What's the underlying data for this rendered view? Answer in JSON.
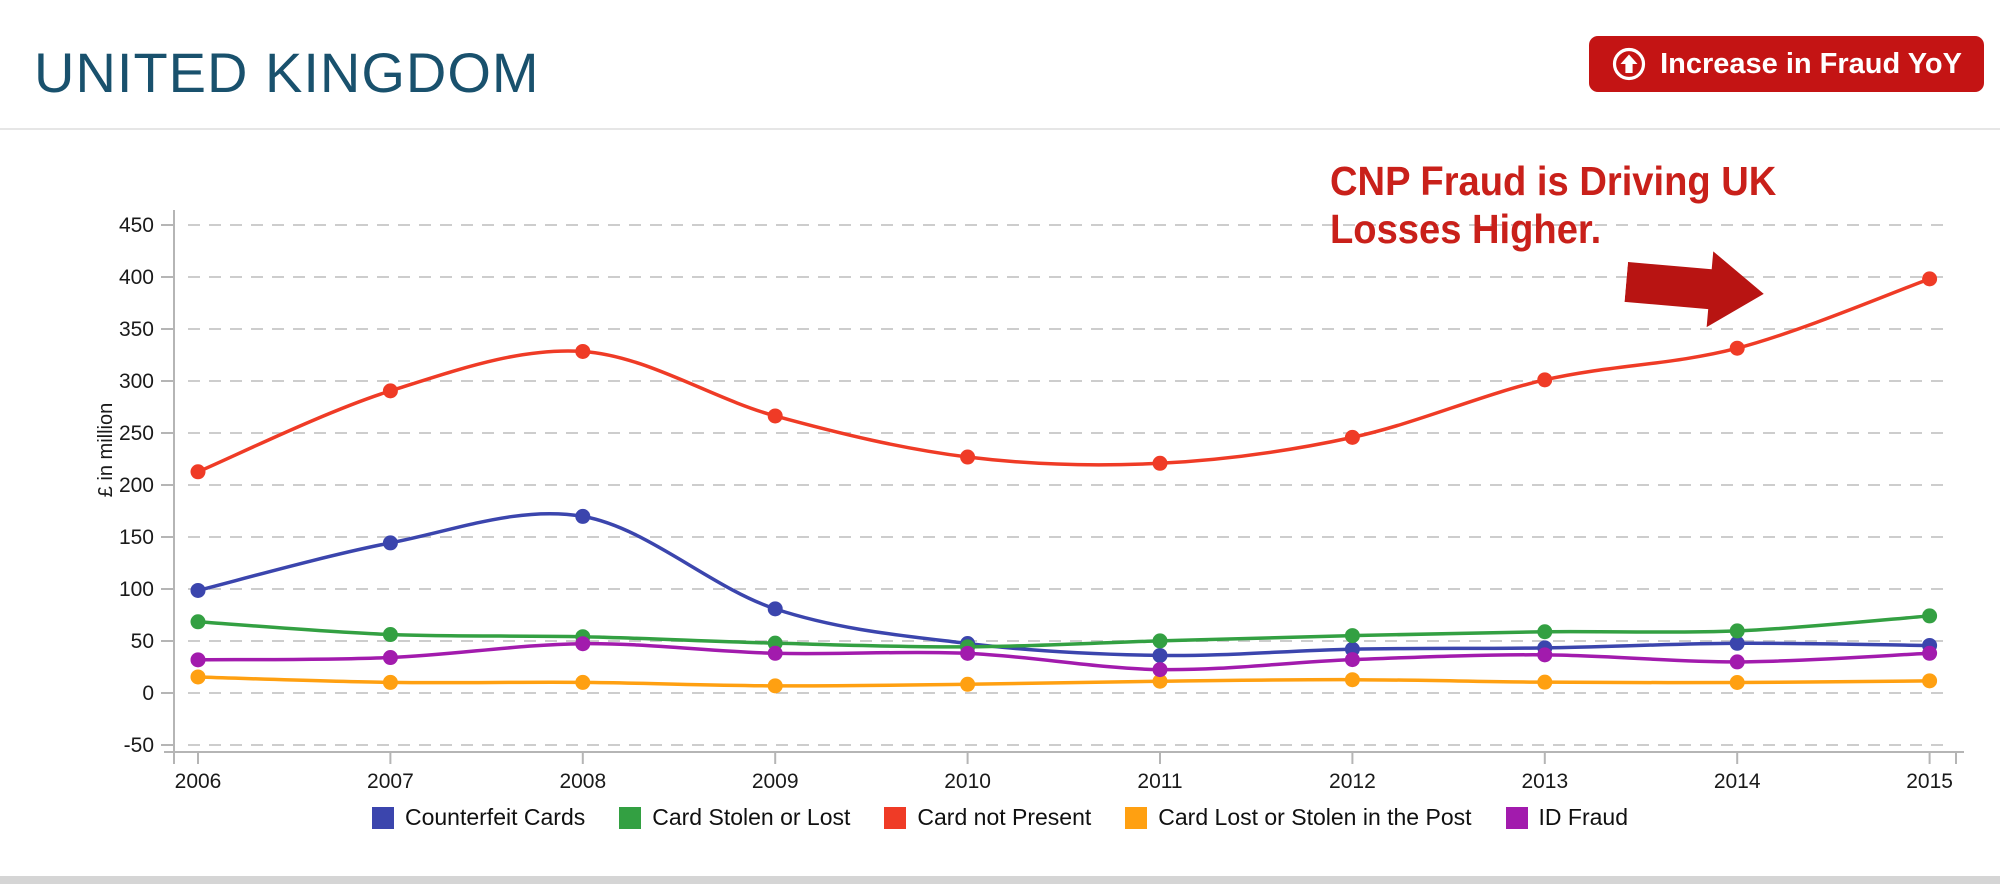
{
  "header": {
    "title": "UNITED KINGDOM",
    "badge": {
      "label": "Increase in Fraud YoY",
      "icon": "circle-up-arrow-icon",
      "bg_color": "#c41414",
      "text_color": "#ffffff"
    }
  },
  "annotation": {
    "line1": "CNP Fraud is Driving UK",
    "line2": "Losses Higher.",
    "color": "#c9201a",
    "arrow_icon": "right-block-arrow-icon",
    "arrow_color": "#b81412"
  },
  "chart_data": {
    "type": "line",
    "line_shape": "smooth",
    "marker": "circle",
    "title": "",
    "xlabel": "",
    "ylabel": "£ in million",
    "categories": [
      "2006",
      "2007",
      "2008",
      "2009",
      "2010",
      "2011",
      "2012",
      "2013",
      "2014",
      "2015"
    ],
    "yticks": [
      -50,
      0,
      50,
      100,
      150,
      200,
      250,
      300,
      350,
      400,
      450
    ],
    "ylim": [
      -75,
      475
    ],
    "grid": "horizontal-dashed",
    "grid_color": "#cdcdcd",
    "axis_color": "#b5b5b5",
    "tick_text_color": "#1a1a1a",
    "legend_position": "bottom center",
    "series": [
      {
        "name": "Counterfeit Cards",
        "color": "#3b45ad",
        "values": [
          98.6,
          144.3,
          169.8,
          80.9,
          47.6,
          36.1,
          42.1,
          43.4,
          47.8,
          45.7
        ]
      },
      {
        "name": "Card Stolen or Lost",
        "color": "#33a042",
        "values": [
          68.5,
          56.2,
          54.1,
          47.9,
          44.4,
          50.1,
          55.2,
          58.9,
          59.7,
          74.1
        ]
      },
      {
        "name": "Card not Present",
        "color": "#ef3b26",
        "values": [
          212.7,
          290.5,
          328.4,
          266.4,
          226.9,
          220.9,
          245.8,
          301.1,
          331.5,
          398.2
        ]
      },
      {
        "name": "Card Lost or Stolen in the Post",
        "color": "#ffa011",
        "values": [
          15.4,
          10.2,
          10.2,
          6.9,
          8.4,
          11.3,
          12.8,
          10.4,
          10.1,
          11.7
        ]
      },
      {
        "name": "ID Fraud",
        "color": "#a21bad",
        "values": [
          31.9,
          34.1,
          47.4,
          38.2,
          38.1,
          22.5,
          32.1,
          36.7,
          29.9,
          38.2
        ]
      }
    ]
  }
}
